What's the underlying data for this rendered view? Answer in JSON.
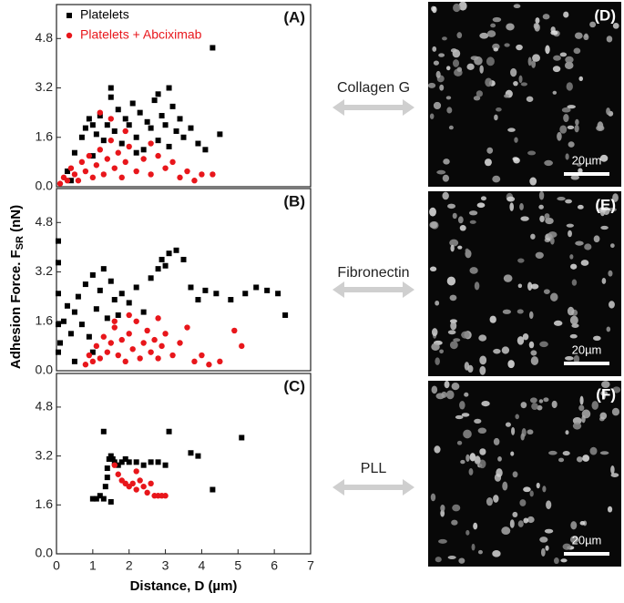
{
  "y_label": [
    "Adhesion Force. F",
    "SR",
    " (nN)"
  ],
  "chart_data": [
    {
      "type": "scatter",
      "title": "(A)",
      "xlim": [
        0,
        7
      ],
      "ylim": [
        0,
        5.9
      ],
      "yticks": [
        {
          "value": 0,
          "label": "0.0"
        },
        1.6,
        3.2,
        4.8
      ],
      "legend": "upper left",
      "series": [
        {
          "name": "Platelets",
          "color": "#000000",
          "marker": "square",
          "x": [
            0.3,
            0.5,
            0.7,
            0.8,
            0.9,
            1.0,
            1.1,
            1.2,
            1.3,
            1.4,
            1.5,
            1.6,
            1.7,
            1.8,
            1.9,
            2.0,
            2.1,
            2.2,
            2.3,
            2.4,
            2.5,
            2.6,
            2.7,
            2.8,
            2.9,
            3.0,
            3.1,
            3.2,
            3.3,
            3.4,
            3.5,
            3.7,
            3.9,
            4.1,
            4.3,
            4.5,
            1.5,
            2.8,
            3.1,
            0.4,
            1.0,
            2.2
          ],
          "values": [
            0.5,
            1.1,
            1.6,
            1.9,
            2.2,
            2.0,
            1.7,
            2.3,
            1.5,
            2.0,
            3.2,
            1.8,
            2.5,
            1.4,
            2.2,
            2.0,
            2.7,
            1.6,
            2.4,
            1.2,
            2.1,
            1.9,
            2.8,
            1.5,
            2.3,
            2.0,
            1.3,
            2.6,
            1.8,
            2.2,
            1.6,
            1.9,
            1.4,
            1.2,
            4.5,
            1.7,
            2.9,
            3.0,
            3.2,
            0.2,
            1.0,
            1.1
          ]
        },
        {
          "name": "Platelets + Abciximab",
          "color": "#e8161b",
          "marker": "circle",
          "x": [
            0.1,
            0.2,
            0.3,
            0.4,
            0.5,
            0.6,
            0.7,
            0.8,
            0.9,
            1.0,
            1.1,
            1.2,
            1.3,
            1.4,
            1.5,
            1.6,
            1.7,
            1.8,
            1.9,
            2.0,
            2.2,
            2.4,
            2.6,
            2.8,
            3.0,
            3.2,
            3.4,
            3.6,
            3.8,
            4.0,
            4.3,
            1.5,
            1.9,
            2.6,
            1.2
          ],
          "values": [
            0.1,
            0.3,
            0.2,
            0.6,
            0.4,
            0.2,
            0.8,
            0.5,
            1.0,
            0.3,
            0.7,
            1.2,
            0.4,
            0.9,
            1.5,
            0.6,
            1.1,
            0.3,
            0.8,
            1.3,
            0.5,
            0.9,
            0.4,
            1.0,
            0.6,
            0.8,
            0.3,
            0.5,
            0.2,
            0.4,
            0.4,
            2.2,
            1.8,
            1.4,
            2.4
          ]
        }
      ]
    },
    {
      "type": "scatter",
      "title": "(B)",
      "xlim": [
        0,
        7
      ],
      "ylim": [
        0,
        5.9
      ],
      "yticks": [
        {
          "value": 0,
          "label": "0.0"
        },
        1.6,
        3.2,
        4.8
      ],
      "series": [
        {
          "color": "#000000",
          "marker": "square",
          "x": [
            0.05,
            0.05,
            0.05,
            0.05,
            0.05,
            0.1,
            0.2,
            0.3,
            0.4,
            0.5,
            0.6,
            0.7,
            0.8,
            0.9,
            1.0,
            1.1,
            1.2,
            1.3,
            1.4,
            1.5,
            1.6,
            1.7,
            1.8,
            2.0,
            2.2,
            2.4,
            2.6,
            2.8,
            2.9,
            3.0,
            3.1,
            3.3,
            3.5,
            3.7,
            3.9,
            4.1,
            4.4,
            4.8,
            5.2,
            5.5,
            5.8,
            6.1,
            6.3,
            1.0,
            0.5
          ],
          "values": [
            0.6,
            1.5,
            2.5,
            3.5,
            4.2,
            0.9,
            1.6,
            2.1,
            1.2,
            1.9,
            2.4,
            1.5,
            2.8,
            1.1,
            3.1,
            2.0,
            2.6,
            3.3,
            1.7,
            2.9,
            2.3,
            1.8,
            2.5,
            2.2,
            2.7,
            1.9,
            3.0,
            3.3,
            3.6,
            3.4,
            3.8,
            3.9,
            3.6,
            2.7,
            2.3,
            2.6,
            2.5,
            2.3,
            2.5,
            2.7,
            2.6,
            2.5,
            1.8,
            0.6,
            0.3
          ]
        },
        {
          "color": "#e8161b",
          "marker": "circle",
          "x": [
            0.8,
            0.9,
            1.0,
            1.1,
            1.2,
            1.3,
            1.4,
            1.5,
            1.6,
            1.7,
            1.8,
            1.9,
            2.0,
            2.1,
            2.2,
            2.3,
            2.4,
            2.5,
            2.6,
            2.7,
            2.8,
            2.9,
            3.0,
            3.2,
            3.4,
            3.6,
            3.8,
            4.0,
            4.2,
            4.5,
            2.8,
            4.9,
            5.1,
            1.6,
            2.0
          ],
          "values": [
            0.2,
            0.5,
            0.3,
            0.8,
            0.4,
            1.1,
            0.6,
            0.9,
            1.4,
            0.5,
            1.0,
            0.3,
            1.2,
            0.7,
            1.6,
            0.4,
            0.9,
            1.3,
            0.6,
            1.0,
            0.4,
            0.8,
            1.2,
            0.5,
            0.9,
            1.4,
            0.3,
            0.5,
            0.2,
            0.3,
            1.7,
            1.3,
            0.8,
            1.6,
            1.8
          ]
        }
      ]
    },
    {
      "type": "scatter",
      "title": "(C)",
      "xlabel": "Distance, D (µm)",
      "xlim": [
        0,
        7
      ],
      "xticks": [
        0,
        1,
        2,
        3,
        4,
        5,
        6,
        7
      ],
      "ylim": [
        0,
        5.9
      ],
      "yticks": [
        {
          "value": 0,
          "label": "0.0"
        },
        1.6,
        3.2,
        4.8
      ],
      "series": [
        {
          "color": "#000000",
          "marker": "square",
          "x": [
            1.0,
            1.1,
            1.2,
            1.3,
            1.35,
            1.4,
            1.4,
            1.45,
            1.5,
            1.55,
            1.6,
            1.7,
            1.8,
            1.9,
            2.0,
            2.2,
            2.4,
            2.6,
            2.8,
            3.0,
            1.3,
            3.1,
            3.7,
            3.9,
            4.3,
            5.1,
            1.5
          ],
          "values": [
            1.8,
            1.8,
            1.9,
            1.8,
            2.2,
            2.5,
            2.8,
            3.1,
            3.2,
            3.1,
            3.0,
            2.9,
            3.0,
            3.1,
            3.0,
            3.0,
            2.9,
            3.0,
            3.0,
            2.9,
            4.0,
            4.0,
            3.3,
            3.2,
            2.1,
            3.8,
            1.7
          ]
        },
        {
          "color": "#e8161b",
          "marker": "circle",
          "x": [
            1.6,
            1.7,
            1.8,
            1.9,
            2.0,
            2.1,
            2.2,
            2.3,
            2.4,
            2.5,
            2.6,
            2.7,
            2.8,
            2.9,
            3.0,
            2.2
          ],
          "values": [
            2.9,
            2.6,
            2.4,
            2.3,
            2.2,
            2.3,
            2.1,
            2.4,
            2.2,
            2.0,
            2.3,
            1.9,
            1.9,
            1.9,
            1.9,
            2.7
          ]
        }
      ]
    }
  ],
  "images": [
    {
      "label": "(D)",
      "surface": "Collagen G",
      "scale_bar": "20µm"
    },
    {
      "label": "(E)",
      "surface": "Fibronectin",
      "scale_bar": "20µm"
    },
    {
      "label": "(F)",
      "surface": "PLL",
      "scale_bar": "20µm"
    }
  ]
}
